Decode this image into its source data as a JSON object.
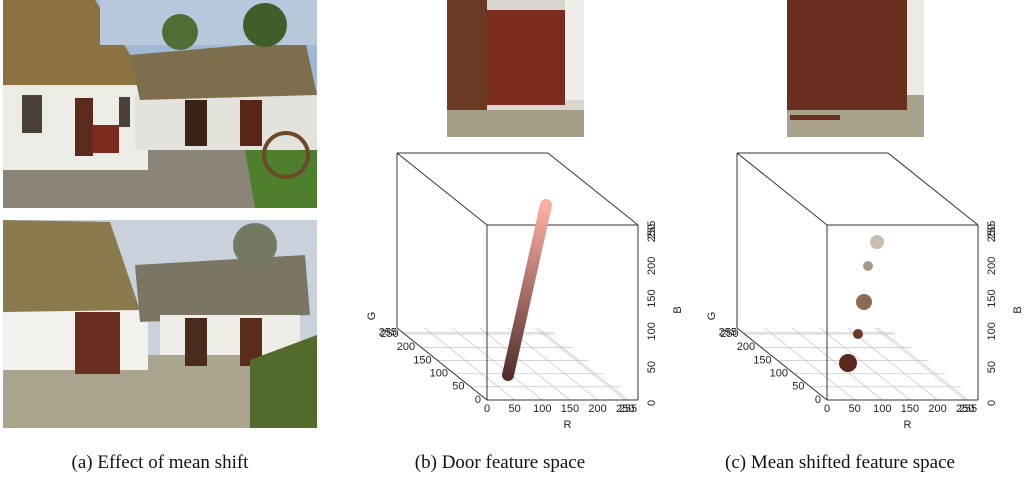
{
  "panels": [
    {
      "caption": "(a) Effect of mean shift"
    },
    {
      "caption": "(b) Door feature space",
      "axes": {
        "x_title": "R",
        "y_title": "G",
        "z_title": "B",
        "x_ticks": [
          0,
          50,
          100,
          150,
          200,
          250,
          255
        ],
        "y_ticks": [
          0,
          50,
          100,
          150,
          200,
          250,
          255
        ],
        "z_ticks": [
          0,
          50,
          100,
          150,
          200,
          250,
          255
        ]
      }
    },
    {
      "caption": "(c) Mean shifted feature space",
      "axes": {
        "x_title": "R",
        "y_title": "G",
        "z_title": "B",
        "x_ticks": [
          0,
          50,
          100,
          150,
          200,
          250,
          255
        ],
        "y_ticks": [
          0,
          50,
          100,
          150,
          200,
          250,
          255
        ],
        "z_ticks": [
          0,
          50,
          100,
          150,
          200,
          250,
          255
        ]
      }
    }
  ]
}
